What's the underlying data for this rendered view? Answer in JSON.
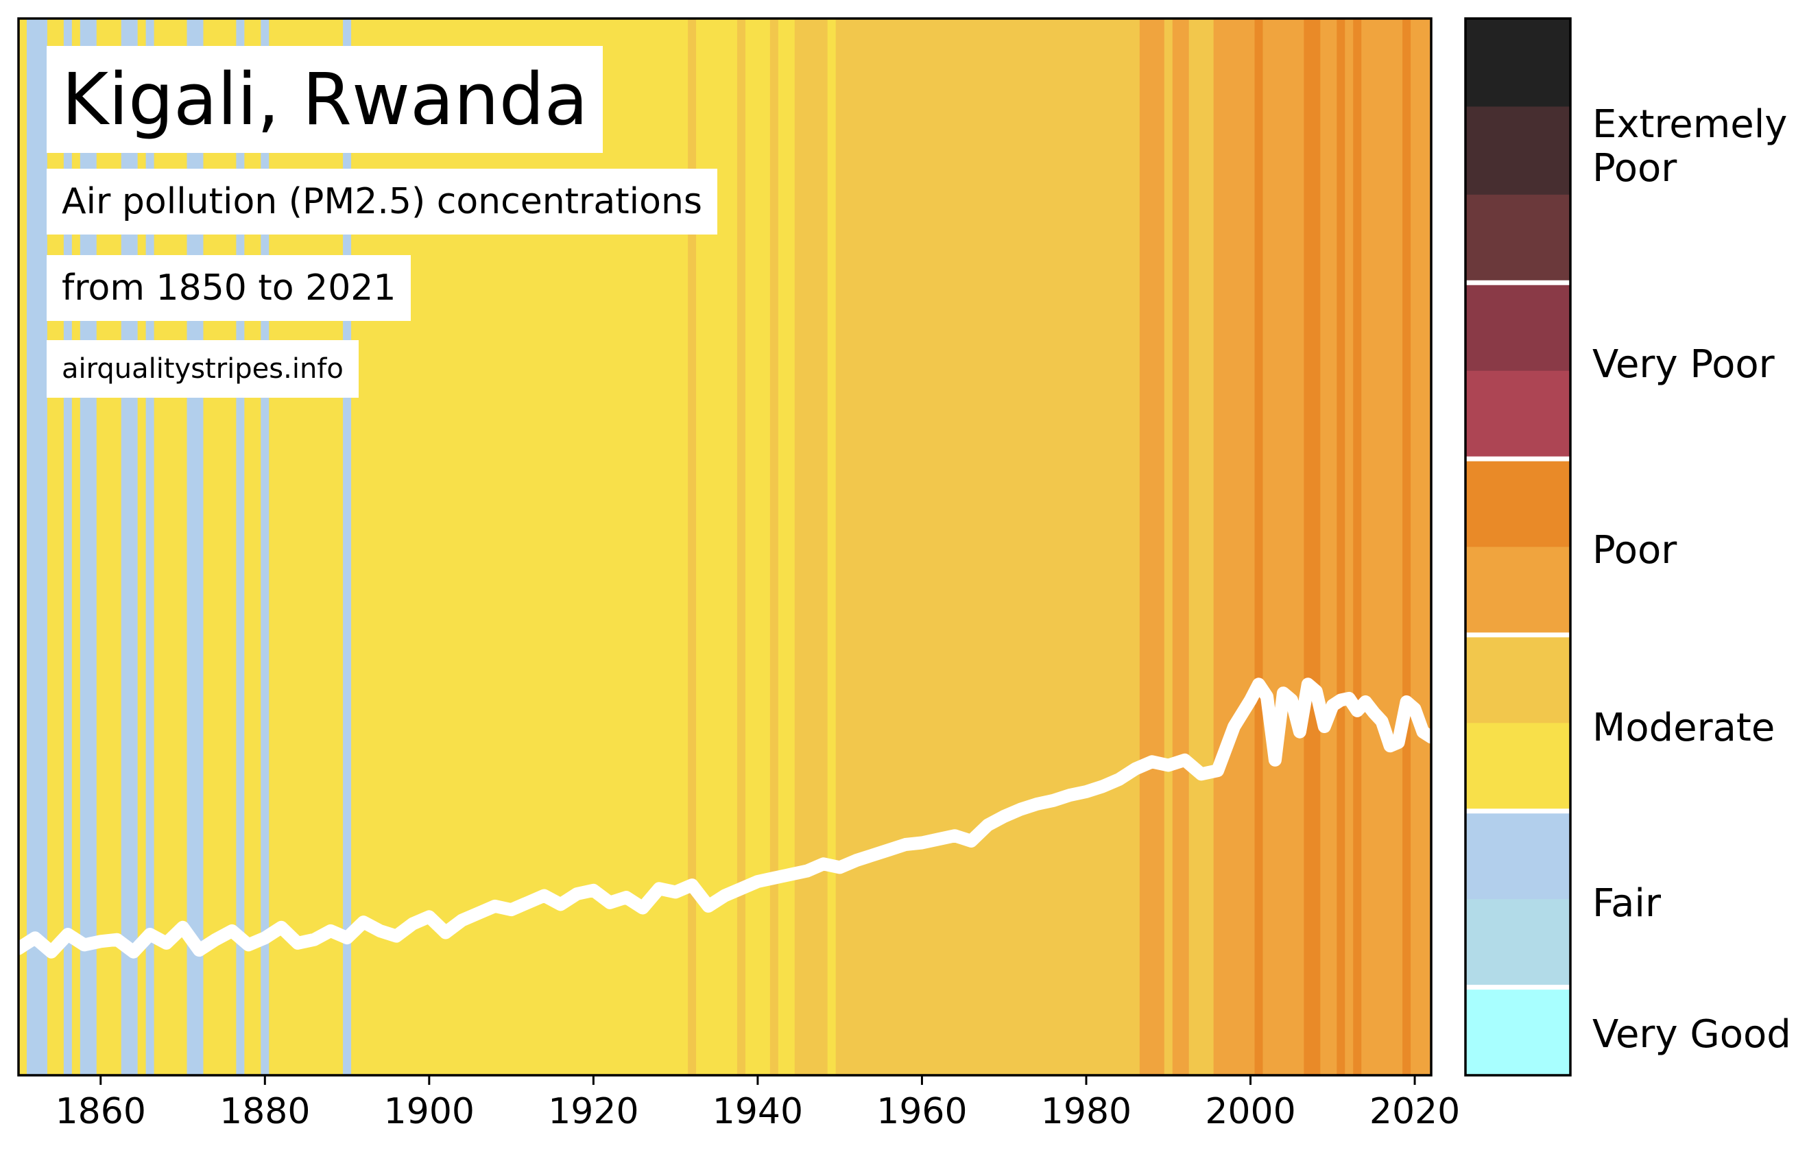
{
  "title": "Kigali, Rwanda",
  "subtitle_line1": "Air pollution (PM2.5) concentrations",
  "subtitle_line2": "from 1850 to 2021",
  "source": "airqualitystripes.info",
  "chart_data": {
    "type": "area",
    "x_ticks": [
      "1860",
      "1880",
      "1900",
      "1920",
      "1940",
      "1960",
      "1980",
      "2000",
      "2020"
    ],
    "xlim": [
      1850,
      2022
    ],
    "ylim": [
      0,
      60
    ],
    "grid": false,
    "legend": "colorbar-right",
    "colors": {
      "very_good": "#a8ffff",
      "good": "#b2dbe8",
      "fair": "#b2cfec",
      "moderate_low": "#f8e04a",
      "moderate_high": "#f2c74c",
      "poor_low": "#f0a43e",
      "poor_high": "#e98a28",
      "very_poor_low": "#ad4554",
      "very_poor_high": "#8a3a47",
      "extremely_poor_low": "#6b393b",
      "extremely_poor_mid": "#472e30",
      "extremely_poor_high": "#222222",
      "trend_line": "#ffffff"
    },
    "stripes": [
      {
        "from": 1850,
        "to": 1851,
        "cat": "moderate_low"
      },
      {
        "from": 1851,
        "to": 1853.5,
        "cat": "fair"
      },
      {
        "from": 1853.5,
        "to": 1855.5,
        "cat": "moderate_low"
      },
      {
        "from": 1855.5,
        "to": 1856.5,
        "cat": "fair"
      },
      {
        "from": 1856.5,
        "to": 1857.5,
        "cat": "moderate_low"
      },
      {
        "from": 1857.5,
        "to": 1859.5,
        "cat": "fair"
      },
      {
        "from": 1859.5,
        "to": 1862.5,
        "cat": "moderate_low"
      },
      {
        "from": 1862.5,
        "to": 1864.5,
        "cat": "fair"
      },
      {
        "from": 1864.5,
        "to": 1865.5,
        "cat": "moderate_low"
      },
      {
        "from": 1865.5,
        "to": 1866.5,
        "cat": "fair"
      },
      {
        "from": 1866.5,
        "to": 1870.5,
        "cat": "moderate_low"
      },
      {
        "from": 1870.5,
        "to": 1872.5,
        "cat": "fair"
      },
      {
        "from": 1872.5,
        "to": 1876.5,
        "cat": "moderate_low"
      },
      {
        "from": 1876.5,
        "to": 1877.5,
        "cat": "fair"
      },
      {
        "from": 1877.5,
        "to": 1879.5,
        "cat": "moderate_low"
      },
      {
        "from": 1879.5,
        "to": 1880.5,
        "cat": "fair"
      },
      {
        "from": 1880.5,
        "to": 1889.5,
        "cat": "moderate_low"
      },
      {
        "from": 1889.5,
        "to": 1890.5,
        "cat": "fair"
      },
      {
        "from": 1890.5,
        "to": 1931.5,
        "cat": "moderate_low"
      },
      {
        "from": 1931.5,
        "to": 1932.5,
        "cat": "moderate_high"
      },
      {
        "from": 1932.5,
        "to": 1937.5,
        "cat": "moderate_low"
      },
      {
        "from": 1937.5,
        "to": 1938.5,
        "cat": "moderate_high"
      },
      {
        "from": 1938.5,
        "to": 1941.5,
        "cat": "moderate_low"
      },
      {
        "from": 1941.5,
        "to": 1942.5,
        "cat": "moderate_high"
      },
      {
        "from": 1942.5,
        "to": 1944.5,
        "cat": "moderate_low"
      },
      {
        "from": 1944.5,
        "to": 1948.5,
        "cat": "moderate_high"
      },
      {
        "from": 1948.5,
        "to": 1949.5,
        "cat": "moderate_low"
      },
      {
        "from": 1949.5,
        "to": 1986.5,
        "cat": "moderate_high"
      },
      {
        "from": 1986.5,
        "to": 1989.5,
        "cat": "poor_low"
      },
      {
        "from": 1989.5,
        "to": 1990.5,
        "cat": "moderate_high"
      },
      {
        "from": 1990.5,
        "to": 1992.5,
        "cat": "poor_low"
      },
      {
        "from": 1992.5,
        "to": 1995.5,
        "cat": "moderate_high"
      },
      {
        "from": 1995.5,
        "to": 2000.5,
        "cat": "poor_low"
      },
      {
        "from": 2000.5,
        "to": 2001.5,
        "cat": "poor_high"
      },
      {
        "from": 2001.5,
        "to": 2006.5,
        "cat": "poor_low"
      },
      {
        "from": 2006.5,
        "to": 2008.5,
        "cat": "poor_high"
      },
      {
        "from": 2008.5,
        "to": 2010.5,
        "cat": "poor_low"
      },
      {
        "from": 2010.5,
        "to": 2011.5,
        "cat": "poor_high"
      },
      {
        "from": 2011.5,
        "to": 2012.5,
        "cat": "poor_low"
      },
      {
        "from": 2012.5,
        "to": 2013.5,
        "cat": "poor_high"
      },
      {
        "from": 2013.5,
        "to": 2018.5,
        "cat": "poor_low"
      },
      {
        "from": 2018.5,
        "to": 2019.5,
        "cat": "poor_high"
      },
      {
        "from": 2019.5,
        "to": 2022,
        "cat": "poor_low"
      }
    ],
    "series": [
      {
        "x": [
          1850,
          1852,
          1854,
          1856,
          1858,
          1860,
          1862,
          1864,
          1866,
          1868,
          1870,
          1872,
          1874,
          1876,
          1878,
          1880,
          1882,
          1884,
          1886,
          1888,
          1890,
          1892,
          1894,
          1896,
          1898,
          1900,
          1902,
          1904,
          1906,
          1908,
          1910,
          1912,
          1914,
          1916,
          1918,
          1920,
          1922,
          1924,
          1926,
          1928,
          1930,
          1932,
          1934,
          1936,
          1938,
          1940,
          1942,
          1944,
          1946,
          1948,
          1950,
          1952,
          1954,
          1956,
          1958,
          1960,
          1962,
          1964,
          1966,
          1968,
          1970,
          1972,
          1974,
          1976,
          1978,
          1980,
          1982,
          1984,
          1986,
          1988,
          1990,
          1992,
          1994,
          1996,
          1998,
          2000,
          2001,
          2002,
          2003,
          2004,
          2005,
          2006,
          2007,
          2008,
          2009,
          2010,
          2011,
          2012,
          2013,
          2014,
          2015,
          2016,
          2017,
          2018,
          2019,
          2020,
          2021,
          2022
        ],
        "y": [
          7.2,
          7.8,
          7.0,
          8.0,
          7.4,
          7.6,
          7.7,
          7.0,
          8.0,
          7.5,
          8.4,
          7.1,
          7.7,
          8.2,
          7.4,
          7.8,
          8.4,
          7.5,
          7.7,
          8.2,
          7.8,
          8.7,
          8.2,
          7.9,
          8.6,
          9.0,
          8.1,
          8.8,
          9.2,
          9.6,
          9.4,
          9.8,
          10.2,
          9.7,
          10.3,
          10.5,
          9.8,
          10.1,
          9.5,
          10.6,
          10.4,
          10.8,
          9.6,
          10.2,
          10.6,
          11.0,
          11.2,
          11.4,
          11.6,
          12.0,
          11.8,
          12.2,
          12.5,
          12.8,
          13.1,
          13.2,
          13.4,
          13.6,
          13.3,
          14.2,
          14.7,
          15.1,
          15.4,
          15.6,
          15.9,
          16.1,
          16.4,
          16.8,
          17.4,
          17.8,
          17.6,
          17.9,
          17.1,
          17.3,
          19.8,
          21.3,
          22.2,
          21.5,
          17.9,
          21.7,
          21.3,
          19.5,
          22.2,
          21.8,
          19.8,
          21.0,
          21.3,
          21.4,
          20.7,
          21.2,
          20.6,
          20.1,
          18.7,
          18.9,
          21.2,
          20.8,
          19.5,
          19.2
        ]
      }
    ],
    "colorbar": {
      "categories": [
        "Extremely Poor",
        "Very Poor",
        "Poor",
        "Moderate",
        "Fair",
        "Very Good"
      ],
      "label_extremely_poor_line1": "Extremely",
      "label_extremely_poor_line2": "Poor"
    }
  }
}
